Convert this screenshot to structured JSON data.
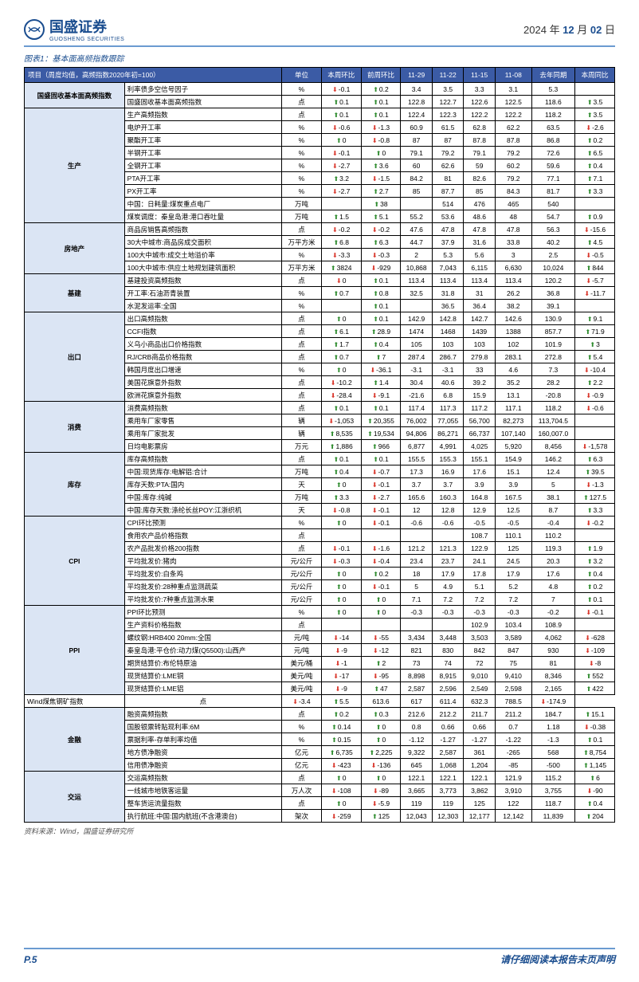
{
  "header": {
    "company": "国盛证券",
    "sub": "GUOSHENG SECURITIES",
    "date_prefix": "2024 年 ",
    "date_month": "12",
    "date_mid": " 月 ",
    "date_day": "02",
    "date_suffix": " 日"
  },
  "fig_title": "图表1：基本面高频指数跟踪",
  "columns": [
    "项目（周度均值，高频指数2020年初=100）",
    "单位",
    "本周环比",
    "前周环比",
    "11-29",
    "11-22",
    "11-15",
    "11-08",
    "去年同期",
    "本周同比"
  ],
  "source": "资料来源：Wind，国盛证券研究所",
  "footer": {
    "page": "P.5",
    "disclaimer": "请仔细阅读本报告末页声明"
  },
  "rows": [
    {
      "cat": "国盛固收基本面高频指数",
      "span": 2,
      "item": "利率债多空信号因子",
      "unit": "%",
      "c": [
        "dn",
        -0.1
      ],
      "p": [
        "up",
        0.2
      ],
      "v": [
        3.4,
        3.5,
        3.3,
        3.1,
        5.3
      ],
      "y": [
        "",
        ""
      ]
    },
    {
      "item": "国盛固收基本面高频指数",
      "unit": "点",
      "c": [
        "up",
        0.1
      ],
      "p": [
        "up",
        0.1
      ],
      "v": [
        122.8,
        122.7,
        122.6,
        122.5,
        118.6
      ],
      "y": [
        "up",
        3.5
      ]
    },
    {
      "cat": "生产",
      "span": 9,
      "sep": 1,
      "item": "生产高频指数",
      "unit": "点",
      "c": [
        "up",
        0.1
      ],
      "p": [
        "up",
        0.1
      ],
      "v": [
        122.4,
        122.3,
        122.2,
        122.2,
        118.2
      ],
      "y": [
        "up",
        3.5
      ]
    },
    {
      "item": "电炉开工率",
      "unit": "%",
      "c": [
        "dn",
        -0.6
      ],
      "p": [
        "dn",
        -1.3
      ],
      "v": [
        60.9,
        61.5,
        62.8,
        62.2,
        63.5
      ],
      "y": [
        "dn",
        -2.6
      ]
    },
    {
      "item": "聚酯开工率",
      "unit": "%",
      "c": [
        "up",
        0.0
      ],
      "p": [
        "dn",
        -0.8
      ],
      "v": [
        87.0,
        87.0,
        87.8,
        87.8,
        86.8
      ],
      "y": [
        "up",
        0.2
      ]
    },
    {
      "item": "半钢开工率",
      "unit": "%",
      "c": [
        "dn",
        -0.1
      ],
      "p": [
        "up",
        0.0
      ],
      "v": [
        79.1,
        79.2,
        79.1,
        79.2,
        72.6
      ],
      "y": [
        "up",
        6.5
      ]
    },
    {
      "item": "全钢开工率",
      "unit": "%",
      "c": [
        "dn",
        -2.7
      ],
      "p": [
        "up",
        3.6
      ],
      "v": [
        60.0,
        62.6,
        59.0,
        60.2,
        59.6
      ],
      "y": [
        "up",
        0.4
      ]
    },
    {
      "item": "PTA开工率",
      "unit": "%",
      "c": [
        "up",
        3.2
      ],
      "p": [
        "dn",
        -1.5
      ],
      "v": [
        84.2,
        81.0,
        82.6,
        79.2,
        77.1
      ],
      "y": [
        "up",
        7.1
      ]
    },
    {
      "item": "PX开工率",
      "unit": "%",
      "c": [
        "dn",
        -2.7
      ],
      "p": [
        "up",
        2.7
      ],
      "v": [
        85.0,
        87.7,
        85.0,
        84.3,
        81.7
      ],
      "y": [
        "up",
        3.3
      ]
    },
    {
      "item": "中国：日耗量:煤炭重点电厂",
      "unit": "万吨",
      "c": [
        "",
        ""
      ],
      "p": [
        "up",
        38.0
      ],
      "v": [
        "",
        514,
        476,
        465,
        540
      ],
      "y": [
        "",
        ""
      ]
    },
    {
      "item": "煤炭调度：秦皇岛港:港口吞吐量",
      "unit": "万吨",
      "c": [
        "up",
        1.5
      ],
      "p": [
        "up",
        5.1
      ],
      "v": [
        55.2,
        53.6,
        48.6,
        48.0,
        54.7
      ],
      "y": [
        "up",
        0.9
      ]
    },
    {
      "cat": "房地产",
      "span": 4,
      "sep": 1,
      "item": "商品房销售高频指数",
      "unit": "点",
      "c": [
        "dn",
        -0.2
      ],
      "p": [
        "dn",
        -0.2
      ],
      "v": [
        47.6,
        47.8,
        47.8,
        47.8,
        56.3
      ],
      "y": [
        "dn",
        -15.6
      ]
    },
    {
      "item": "30大中城市:商品房成交面积",
      "unit": "万平方米",
      "c": [
        "up",
        6.8
      ],
      "p": [
        "up",
        6.3
      ],
      "v": [
        44.7,
        37.9,
        31.6,
        33.8,
        40.2
      ],
      "y": [
        "up",
        4.5
      ]
    },
    {
      "item": "100大中城市:成交土地溢价率",
      "unit": "%",
      "c": [
        "dn",
        -3.3
      ],
      "p": [
        "dn",
        -0.3
      ],
      "v": [
        2.0,
        5.3,
        5.6,
        3.0,
        2.5
      ],
      "y": [
        "dn",
        -0.5
      ]
    },
    {
      "item": "100大中城市:供应土地规划建筑面积",
      "unit": "万平方米",
      "c": [
        "up",
        3824
      ],
      "p": [
        "dn",
        -929
      ],
      "v": [
        "10,868",
        "7,043",
        "6,115",
        "6,630",
        "10,024"
      ],
      "y": [
        "up",
        844
      ]
    },
    {
      "cat": "基建",
      "span": 3,
      "sep": 1,
      "item": "基建投资高频指数",
      "unit": "点",
      "c": [
        "dn",
        0.0
      ],
      "p": [
        "up",
        0.1
      ],
      "v": [
        113.4,
        113.4,
        113.4,
        113.4,
        120.2
      ],
      "y": [
        "dn",
        -5.7
      ]
    },
    {
      "item": "开工率:石油沥青装置",
      "unit": "%",
      "c": [
        "up",
        0.7
      ],
      "p": [
        "up",
        0.8
      ],
      "v": [
        32.5,
        31.8,
        31.0,
        26.2,
        36.8
      ],
      "y": [
        "dn",
        -11.7
      ]
    },
    {
      "item": "水泥发运率:全国",
      "unit": "%",
      "c": [
        "",
        ""
      ],
      "p": [
        "up",
        0.1
      ],
      "v": [
        "",
        36.5,
        36.4,
        38.2,
        39.1
      ],
      "y": [
        "",
        ""
      ]
    },
    {
      "cat": "出口",
      "span": 7,
      "sep": 1,
      "item": "出口高频指数",
      "unit": "点",
      "c": [
        "up",
        0.0
      ],
      "p": [
        "up",
        0.1
      ],
      "v": [
        142.9,
        142.8,
        142.7,
        142.6,
        130.9
      ],
      "y": [
        "up",
        9.1
      ]
    },
    {
      "item": "CCFI指数",
      "unit": "点",
      "c": [
        "up",
        6.1
      ],
      "p": [
        "up",
        28.9
      ],
      "v": [
        1474,
        1468,
        1439,
        1388,
        857.7
      ],
      "y": [
        "up",
        71.9
      ]
    },
    {
      "item": "义乌小商品出口价格指数",
      "unit": "点",
      "c": [
        "up",
        1.7
      ],
      "p": [
        "up",
        0.4
      ],
      "v": [
        105,
        103,
        103,
        102,
        101.9
      ],
      "y": [
        "up",
        3.0
      ]
    },
    {
      "item": "RJ/CRB商品价格指数",
      "unit": "点",
      "c": [
        "up",
        0.7
      ],
      "p": [
        "up",
        7.0
      ],
      "v": [
        287.4,
        286.7,
        279.8,
        283.1,
        272.8
      ],
      "y": [
        "up",
        5.4
      ]
    },
    {
      "item": "韩国月度出口增速",
      "unit": "%",
      "c": [
        "up",
        0.0
      ],
      "p": [
        "dn",
        -36.1
      ],
      "v": [
        -3.1,
        -3.1,
        33.0,
        4.6,
        7.3
      ],
      "y": [
        "dn",
        -10.4
      ]
    },
    {
      "item": "美国花旗意外指数",
      "unit": "点",
      "c": [
        "dn",
        -10.2
      ],
      "p": [
        "up",
        1.4
      ],
      "v": [
        30.4,
        40.6,
        39.2,
        35.2,
        28.2
      ],
      "y": [
        "up",
        2.2
      ]
    },
    {
      "item": "欧洲花旗意外指数",
      "unit": "点",
      "c": [
        "dn",
        -28.4
      ],
      "p": [
        "dn",
        -9.1
      ],
      "v": [
        -21.6,
        6.8,
        15.9,
        13.1,
        -20.8
      ],
      "y": [
        "dn",
        -0.9
      ]
    },
    {
      "cat": "消费",
      "span": 4,
      "sep": 1,
      "item": "消费高频指数",
      "unit": "点",
      "c": [
        "up",
        0.1
      ],
      "p": [
        "up",
        0.1
      ],
      "v": [
        117.4,
        117.3,
        117.2,
        117.1,
        118.2
      ],
      "y": [
        "dn",
        -0.6
      ]
    },
    {
      "item": "乘用车厂家零售",
      "unit": "辆",
      "c": [
        "dn",
        "-1,053"
      ],
      "p": [
        "up",
        "20,355"
      ],
      "v": [
        "76,002",
        "77,055",
        "56,700",
        "82,273",
        "113,704.5"
      ],
      "y": [
        "",
        ""
      ]
    },
    {
      "item": "乘用车厂家批发",
      "unit": "辆",
      "c": [
        "up",
        "8,535"
      ],
      "p": [
        "up",
        "19,534"
      ],
      "v": [
        "94,806",
        "86,271",
        "66,737",
        "107,140",
        "160,007.0"
      ],
      "y": [
        "",
        ""
      ]
    },
    {
      "item": "日均电影票房",
      "unit": "万元",
      "c": [
        "up",
        "1,886"
      ],
      "p": [
        "up",
        966
      ],
      "v": [
        "6,877",
        "4,991",
        "4,025",
        "5,920",
        "8,456"
      ],
      "y": [
        "dn",
        "-1,578"
      ]
    },
    {
      "cat": "库存",
      "span": 5,
      "sep": 1,
      "item": "库存高频指数",
      "unit": "点",
      "c": [
        "up",
        0.1
      ],
      "p": [
        "up",
        0.1
      ],
      "v": [
        155.5,
        155.3,
        155.1,
        154.9,
        146.2
      ],
      "y": [
        "up",
        6.3
      ]
    },
    {
      "item": "中国:现货库存:电解铝:合计",
      "unit": "万吨",
      "c": [
        "up",
        0.4
      ],
      "p": [
        "dn",
        -0.7
      ],
      "v": [
        17.3,
        16.9,
        17.6,
        15.1,
        12.4
      ],
      "y": [
        "up",
        39.5
      ]
    },
    {
      "item": "库存天数:PTA:国内",
      "unit": "天",
      "c": [
        "up",
        0.0
      ],
      "p": [
        "dn",
        -0.1
      ],
      "v": [
        3.7,
        3.7,
        3.9,
        3.9,
        5.0
      ],
      "y": [
        "dn",
        -1.3
      ]
    },
    {
      "item": "中国:库存:纯碱",
      "unit": "万吨",
      "c": [
        "up",
        3.3
      ],
      "p": [
        "dn",
        -2.7
      ],
      "v": [
        165.6,
        160.3,
        164.8,
        167.5,
        38.1
      ],
      "y": [
        "up",
        127.5
      ]
    },
    {
      "item": "中国:库存天数:涤纶长丝POY:江浙织机",
      "unit": "天",
      "c": [
        "dn",
        -0.8
      ],
      "p": [
        "dn",
        -0.1
      ],
      "v": [
        12.0,
        12.8,
        12.9,
        12.5,
        8.7
      ],
      "y": [
        "up",
        3.3
      ]
    },
    {
      "cat": "CPI",
      "span": 7,
      "sep": 1,
      "item": "CPI环比预测",
      "unit": "%",
      "c": [
        "up",
        0.0
      ],
      "p": [
        "dn",
        -0.1
      ],
      "v": [
        -0.6,
        -0.6,
        -0.5,
        -0.5,
        -0.4
      ],
      "y": [
        "dn",
        -0.2
      ]
    },
    {
      "item": "食用农产品价格指数",
      "unit": "点",
      "c": [
        "",
        ""
      ],
      "p": [
        "",
        ""
      ],
      "v": [
        "",
        "",
        108.7,
        110.1,
        110.2
      ],
      "y": [
        "",
        ""
      ]
    },
    {
      "item": "农产品批发价格200指数",
      "unit": "点",
      "c": [
        "dn",
        -0.1
      ],
      "p": [
        "dn",
        -1.6
      ],
      "v": [
        121.2,
        121.3,
        122.9,
        125.0,
        119.3
      ],
      "y": [
        "up",
        1.9
      ]
    },
    {
      "item": "平均批发价:猪肉",
      "unit": "元/公斤",
      "c": [
        "dn",
        -0.3
      ],
      "p": [
        "dn",
        -0.4
      ],
      "v": [
        23.4,
        23.7,
        24.1,
        24.5,
        20.3
      ],
      "y": [
        "up",
        3.2
      ]
    },
    {
      "item": "平均批发价:白条鸡",
      "unit": "元/公斤",
      "c": [
        "up",
        0.0
      ],
      "p": [
        "up",
        0.2
      ],
      "v": [
        18.0,
        17.9,
        17.8,
        17.9,
        17.6
      ],
      "y": [
        "up",
        0.4
      ]
    },
    {
      "item": "平均批发价:28种重点监测蔬菜",
      "unit": "元/公斤",
      "c": [
        "up",
        0.0
      ],
      "p": [
        "dn",
        -0.1
      ],
      "v": [
        5.0,
        4.9,
        5.1,
        5.2,
        4.8
      ],
      "y": [
        "up",
        0.2
      ]
    },
    {
      "item": "平均批发价:7种重点监测水果",
      "unit": "元/公斤",
      "c": [
        "up",
        0.0
      ],
      "p": [
        "up",
        0.0
      ],
      "v": [
        7.1,
        7.2,
        7.2,
        7.2,
        7.0
      ],
      "y": [
        "up",
        0.1
      ]
    },
    {
      "cat": "PPI",
      "span": 7,
      "sep": 1,
      "item": "PPI环比预测",
      "unit": "%",
      "c": [
        "up",
        0.0
      ],
      "p": [
        "up",
        0.0
      ],
      "v": [
        -0.3,
        -0.3,
        -0.3,
        -0.3,
        -0.2
      ],
      "y": [
        "dn",
        -0.1
      ]
    },
    {
      "item": "生产资料价格指数",
      "unit": "点",
      "c": [
        "",
        ""
      ],
      "p": [
        "",
        ""
      ],
      "v": [
        "",
        "",
        102.9,
        103.4,
        108.9
      ],
      "y": [
        "",
        ""
      ]
    },
    {
      "item": "螺纹钢:HRB400 20mm:全国",
      "unit": "元/吨",
      "c": [
        "dn",
        -14
      ],
      "p": [
        "dn",
        -55
      ],
      "v": [
        "3,434",
        "3,448",
        "3,503",
        "3,589",
        "4,062"
      ],
      "y": [
        "dn",
        -628
      ]
    },
    {
      "item": "秦皇岛港:平仓价:动力煤(Q5500):山西产",
      "unit": "元/吨",
      "c": [
        "dn",
        -9
      ],
      "p": [
        "dn",
        -12
      ],
      "v": [
        821,
        830,
        842,
        847,
        930
      ],
      "y": [
        "dn",
        -109
      ]
    },
    {
      "item": "期货结算价:布伦特原油",
      "unit": "美元/桶",
      "c": [
        "dn",
        -1
      ],
      "p": [
        "up",
        2
      ],
      "v": [
        73,
        74,
        72,
        75,
        81
      ],
      "y": [
        "dn",
        -8
      ]
    },
    {
      "item": "现货结算价:LME铜",
      "unit": "美元/吨",
      "c": [
        "dn",
        -17
      ],
      "p": [
        "dn",
        -95
      ],
      "v": [
        "8,898",
        "8,915",
        "9,010",
        "9,410",
        "8,346"
      ],
      "y": [
        "up",
        552
      ]
    },
    {
      "item": "现货结算价:LME铝",
      "unit": "美元/吨",
      "c": [
        "dn",
        -9
      ],
      "p": [
        "up",
        47
      ],
      "v": [
        "2,587",
        "2,596",
        "2,549",
        "2,598",
        "2,165"
      ],
      "y": [
        "up",
        422
      ]
    },
    {
      "item": "Wind煤焦钢矿指数",
      "unit": "点",
      "c": [
        "dn",
        -3.4
      ],
      "p": [
        "up",
        5.5
      ],
      "v": [
        613.6,
        617.0,
        611.4,
        632.3,
        788.5
      ],
      "y": [
        "dn",
        -174.9
      ]
    },
    {
      "cat": "金融",
      "span": 5,
      "sep": 1,
      "item": "融资高频指数",
      "unit": "点",
      "c": [
        "up",
        0.2
      ],
      "p": [
        "up",
        0.3
      ],
      "v": [
        212.6,
        212.2,
        211.7,
        211.2,
        184.7
      ],
      "y": [
        "up",
        15.1
      ]
    },
    {
      "item": "国股银票转贴现利率:6M",
      "unit": "%",
      "c": [
        "up",
        0.14
      ],
      "p": [
        "up",
        0.0
      ],
      "v": [
        0.8,
        0.66,
        0.66,
        0.7,
        1.18
      ],
      "y": [
        "dn",
        -0.38
      ]
    },
    {
      "item": "票据利率-存单利率均值",
      "unit": "%",
      "c": [
        "up",
        0.15
      ],
      "p": [
        "up",
        0.0
      ],
      "v": [
        -1.12,
        -1.27,
        -1.27,
        -1.22,
        -1.3
      ],
      "y": [
        "up",
        0.1
      ]
    },
    {
      "item": "地方债净融资",
      "unit": "亿元",
      "c": [
        "up",
        "6,735"
      ],
      "p": [
        "up",
        "2,225"
      ],
      "v": [
        "9,322",
        "2,587",
        361,
        -265,
        568
      ],
      "y": [
        "up",
        "8,754"
      ]
    },
    {
      "item": "信用债净融资",
      "unit": "亿元",
      "c": [
        "dn",
        -423
      ],
      "p": [
        "dn",
        -136
      ],
      "v": [
        645,
        "1,068",
        "1,204",
        -85,
        -500
      ],
      "y": [
        "up",
        "1,145"
      ]
    },
    {
      "cat": "交运",
      "span": 4,
      "sep": 1,
      "item": "交运高频指数",
      "unit": "点",
      "c": [
        "up",
        0.0
      ],
      "p": [
        "up",
        0.0
      ],
      "v": [
        122.1,
        122.1,
        122.1,
        121.9,
        115.2
      ],
      "y": [
        "up",
        6.0
      ]
    },
    {
      "item": "一线城市地铁客运量",
      "unit": "万人次",
      "c": [
        "dn",
        -108
      ],
      "p": [
        "dn",
        -89
      ],
      "v": [
        "3,665",
        "3,773",
        "3,862",
        "3,910",
        "3,755"
      ],
      "y": [
        "dn",
        -90
      ]
    },
    {
      "item": "整车货运流量指数",
      "unit": "点",
      "c": [
        "up",
        0.0
      ],
      "p": [
        "dn",
        -5.9
      ],
      "v": [
        119,
        119,
        125,
        122,
        118.7
      ],
      "y": [
        "up",
        0.4
      ]
    },
    {
      "item": "执行航班:中国:国内航班(不含港澳台)",
      "unit": "架次",
      "c": [
        "dn",
        -259
      ],
      "p": [
        "up",
        125
      ],
      "v": [
        "12,043",
        "12,303",
        "12,177",
        "12,142",
        "11,839"
      ],
      "y": [
        "up",
        204
      ]
    }
  ]
}
